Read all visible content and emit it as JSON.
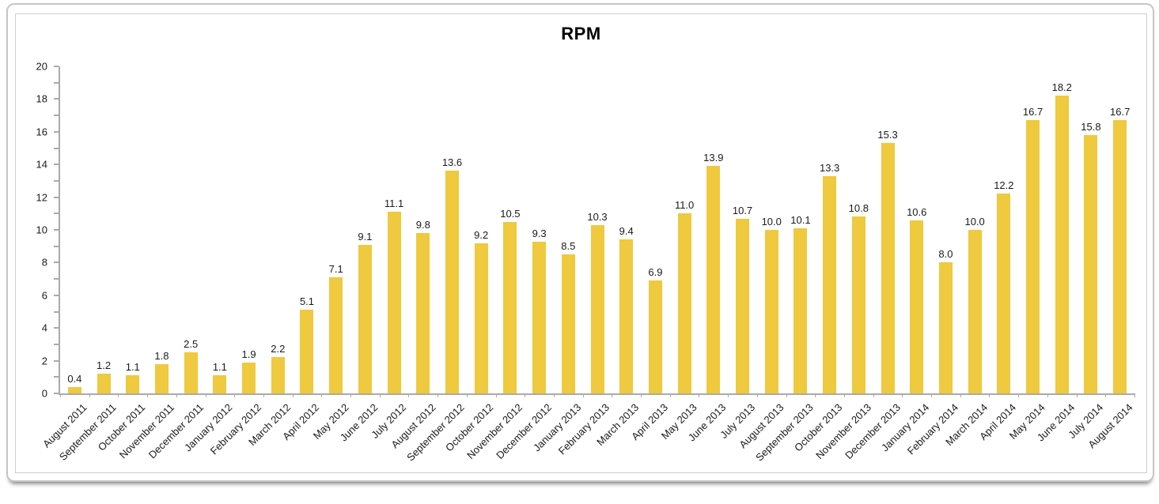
{
  "chart_data": {
    "type": "bar",
    "title": "RPM",
    "categories": [
      "August 2011",
      "September 2011",
      "October 2011",
      "November 2011",
      "December 2011",
      "January 2012",
      "February 2012",
      "March 2012",
      "April 2012",
      "May 2012",
      "June 2012",
      "July 2012",
      "August 2012",
      "September 2012",
      "October 2012",
      "November 2012",
      "December 2012",
      "January 2013",
      "February 2013",
      "March 2013",
      "April 2013",
      "May 2013",
      "June 2013",
      "July 2013",
      "August 2013",
      "September 2013",
      "October 2013",
      "November 2013",
      "December 2013",
      "January 2014",
      "February 2014",
      "March 2014",
      "April 2014",
      "May 2014",
      "June 2014",
      "July 2014",
      "August 2014"
    ],
    "values": [
      0.4,
      1.2,
      1.1,
      1.8,
      2.5,
      1.1,
      1.9,
      2.2,
      5.1,
      7.1,
      9.1,
      11.1,
      9.8,
      13.6,
      9.2,
      10.5,
      9.3,
      8.5,
      10.3,
      9.4,
      6.9,
      11.0,
      13.9,
      10.7,
      10.0,
      10.1,
      13.3,
      10.8,
      15.3,
      10.6,
      8.0,
      10.0,
      12.2,
      16.7,
      18.2,
      15.8,
      16.7
    ],
    "value_labels": [
      "0.4",
      "1.2",
      "1.1",
      "1.8",
      "2.5",
      "1.1",
      "1.9",
      "2.2",
      "5.1",
      "7.1",
      "9.1",
      "11.1",
      "9.8",
      "13.6",
      "9.2",
      "10.5",
      "9.3",
      "8.5",
      "10.3",
      "9.4",
      "6.9",
      "11.0",
      "13.9",
      "10.7",
      "10.0",
      "10.1",
      "13.3",
      "10.8",
      "15.3",
      "10.6",
      "8.0",
      "10.0",
      "12.2",
      "16.7",
      "18.2",
      "15.8",
      "16.7"
    ],
    "xlabel": "",
    "ylabel": "",
    "ylim": [
      0,
      20
    ],
    "ytick_major_step": 2,
    "ytick_minor_step": 1,
    "ytick_labels": [
      "0",
      "2",
      "4",
      "6",
      "8",
      "10",
      "12",
      "14",
      "16",
      "18",
      "20"
    ],
    "grid": false,
    "legend": "none",
    "bar_color": "#EFC93E",
    "axis_color": "#AAAAAA",
    "text_color": "#1A1A1A"
  }
}
